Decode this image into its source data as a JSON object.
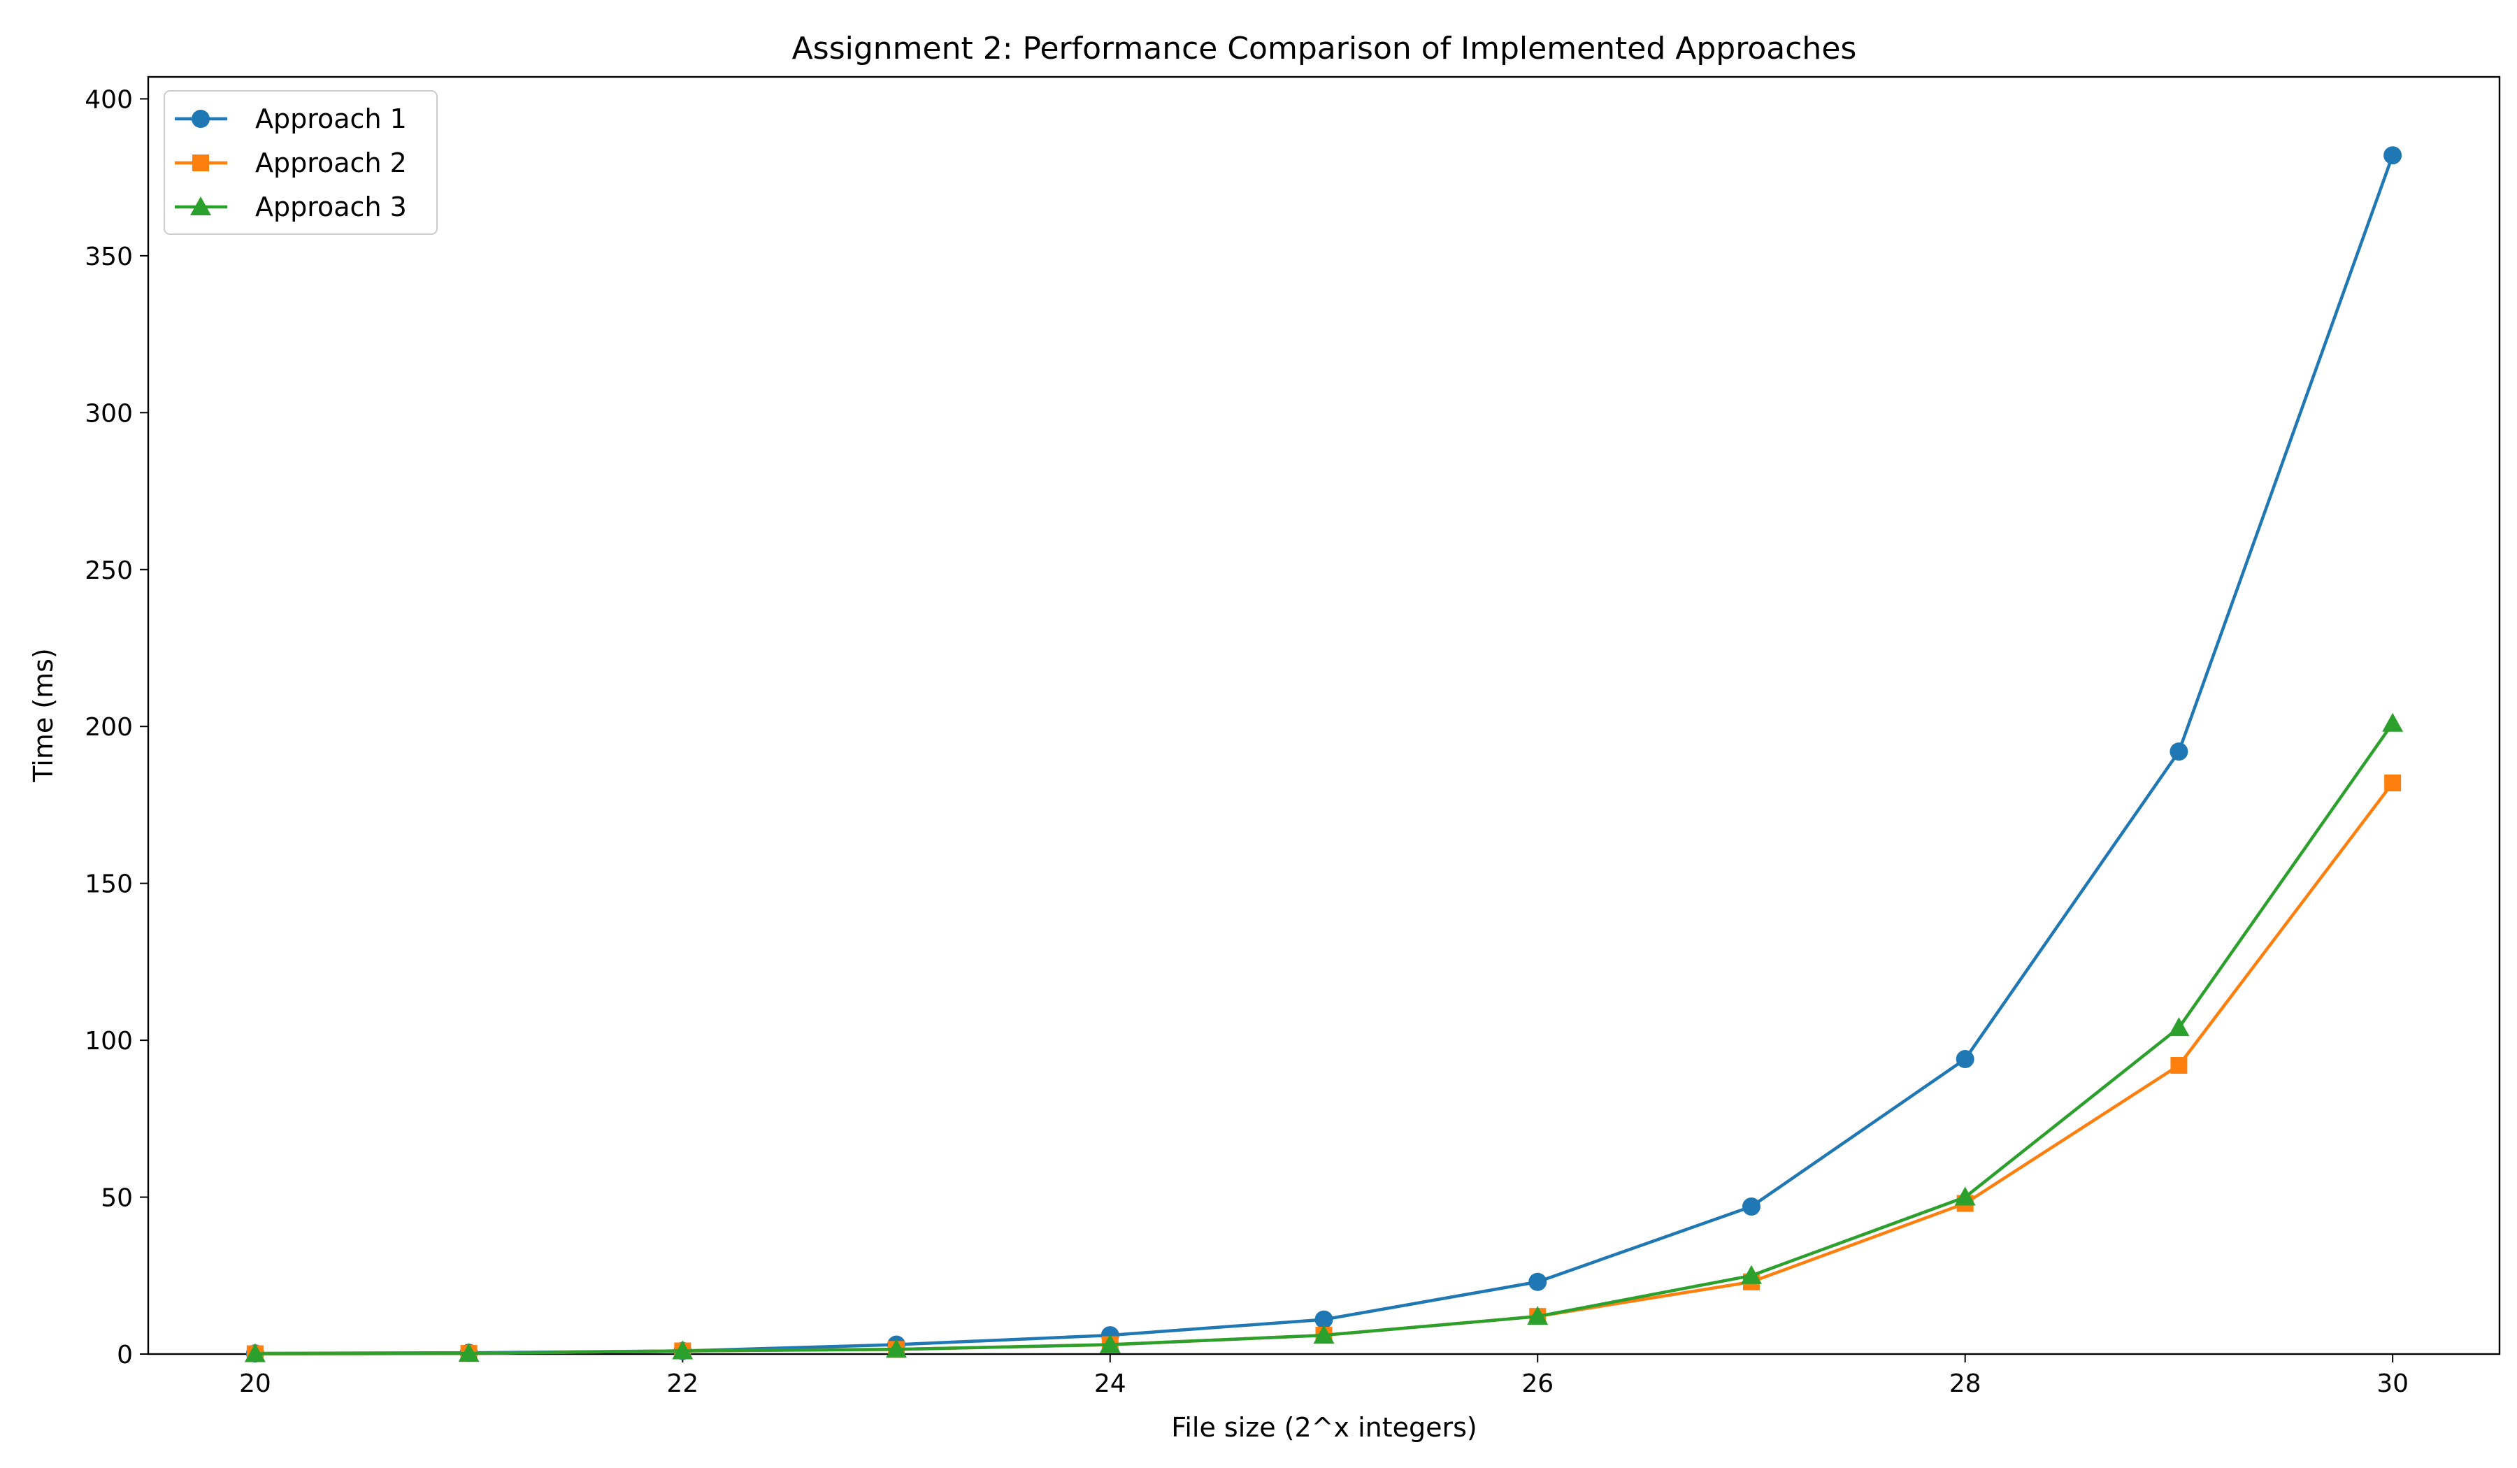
{
  "chart_data": {
    "type": "line",
    "title": "Assignment 2: Performance Comparison of Implemented Approaches",
    "xlabel": "File size (2^x integers)",
    "ylabel": "Time (ms)",
    "xlim": [
      19.5,
      30.5
    ],
    "ylim": [
      0,
      407
    ],
    "x_ticks": [
      20,
      22,
      24,
      26,
      28,
      30
    ],
    "y_ticks": [
      0,
      50,
      100,
      150,
      200,
      250,
      300,
      350,
      400
    ],
    "x": [
      20,
      21,
      22,
      23,
      24,
      25,
      26,
      27,
      28,
      29,
      30
    ],
    "grid": false,
    "legend_position": "top-left",
    "series": [
      {
        "name": "Approach 1",
        "color": "#1f77b4",
        "marker": "circle",
        "values": [
          0.2,
          0.4,
          1,
          3,
          6,
          11,
          23,
          47,
          94,
          192,
          382
        ]
      },
      {
        "name": "Approach 2",
        "color": "#ff7f0e",
        "marker": "square",
        "values": [
          0.1,
          0.2,
          1,
          1.5,
          3,
          6,
          12,
          23,
          48,
          92,
          182
        ]
      },
      {
        "name": "Approach 3",
        "color": "#2ca02c",
        "marker": "triangle",
        "values": [
          0.1,
          0.2,
          1,
          1.5,
          3,
          6,
          12,
          25,
          50,
          104,
          201
        ]
      }
    ]
  }
}
